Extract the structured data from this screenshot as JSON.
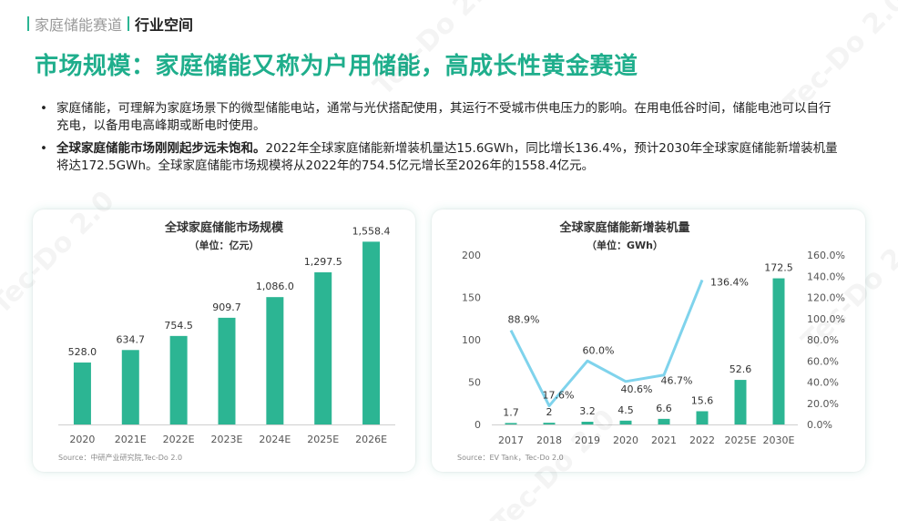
{
  "header": {
    "section": "家庭储能赛道",
    "current": "行业空间"
  },
  "title": "市场规模：家庭储能又称为户用储能，高成长性黄金赛道",
  "bullets": [
    {
      "strong": "",
      "text": "家庭储能，可理解为家庭场景下的微型储能电站，通常与光伏搭配使用，其运行不受城市供电压力的影响。在用电低谷时间，储能电池可以自行充电，以备用电高峰期或断电时使用。"
    },
    {
      "strong": "全球家庭储能市场刚刚起步远未饱和。",
      "text": "2022年全球家庭储能新增装机量达15.6GWh，同比增长136.4%，预计2030年全球家庭储能新增装机量将达172.5GWh。全球家庭储能市场规模将从2022年的754.5亿元增长至2026年的1558.4亿元。"
    }
  ],
  "watermark": "Tec-Do 2.0",
  "colors": {
    "accent": "#1fae8c",
    "bar": "#2cb593",
    "line": "#7fd3ec"
  },
  "chart_data": [
    {
      "type": "bar",
      "title": "全球家庭储能市场规模",
      "subtitle": "（单位：亿元）",
      "categories": [
        "2020",
        "2021E",
        "2022E",
        "2023E",
        "2024E",
        "2025E",
        "2026E"
      ],
      "values": [
        528.0,
        634.7,
        754.5,
        909.7,
        1086.0,
        1297.5,
        1558.4
      ],
      "value_labels": [
        "528.0",
        "634.7",
        "754.5",
        "909.7",
        "1,086.0",
        "1,297.5",
        "1,558.4"
      ],
      "ylim": [
        0,
        1600
      ],
      "grid": false,
      "source": "Source：中研产业研究院,Tec-Do 2.0"
    },
    {
      "type": "bar",
      "title": "全球家庭储能新增装机量",
      "subtitle": "（单位：GWh）",
      "categories": [
        "2017",
        "2018",
        "2019",
        "2020",
        "2021",
        "2022",
        "2025E",
        "2030E"
      ],
      "values": [
        1.7,
        2,
        3.2,
        4.5,
        6.6,
        15.6,
        52.6,
        172.5
      ],
      "value_labels": [
        "1.7",
        "2",
        "3.2",
        "4.5",
        "6.6",
        "15.6",
        "52.6",
        "172.5"
      ],
      "ylim": [
        0,
        200
      ],
      "yticks": [
        "0",
        "50",
        "100",
        "150",
        "200"
      ],
      "growth_line": {
        "categories": [
          "2017",
          "2018",
          "2019",
          "2020",
          "2021",
          "2022"
        ],
        "values": [
          88.9,
          17.6,
          60.0,
          40.6,
          46.7,
          136.4
        ],
        "labels": [
          "88.9%",
          "17.6%",
          "60.0%",
          "40.6%",
          "46.7%",
          "136.4%"
        ],
        "ylim": [
          0,
          160
        ],
        "yticks": [
          "0.0%",
          "20.0%",
          "40.0%",
          "60.0%",
          "80.0%",
          "100.0%",
          "120.0%",
          "140.0%",
          "160.0%"
        ]
      },
      "grid": false,
      "source": "Source：EV Tank，Tec-Do 2.0"
    }
  ]
}
